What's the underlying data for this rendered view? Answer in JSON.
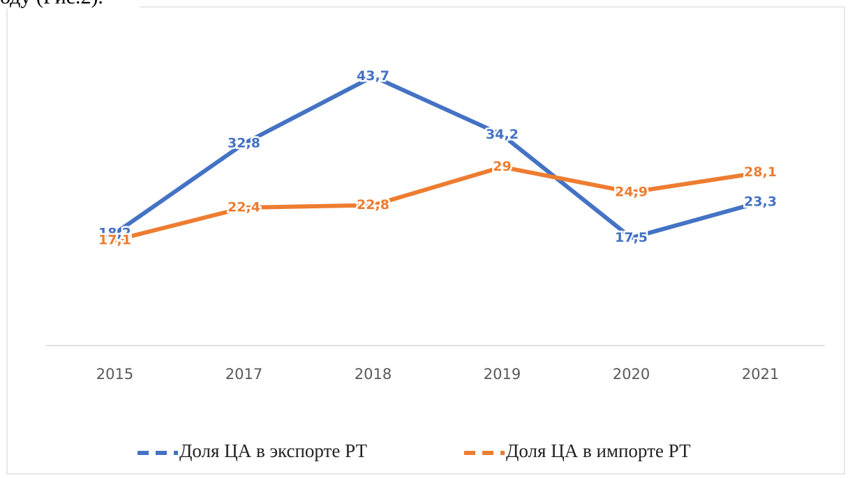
{
  "page_text": "оду (Рис.2).",
  "chart_data": {
    "type": "line",
    "categories": [
      "2015",
      "2017",
      "2018",
      "2019",
      "2020",
      "2021"
    ],
    "series": [
      {
        "name": "Доля ЦА в экспорте РТ",
        "color": "#4472c4",
        "values": [
          18.2,
          32.8,
          43.7,
          34.2,
          17.5,
          23.3
        ],
        "value_labels": [
          "18,2",
          "32,8",
          "43,7",
          "34,2",
          "17,5",
          "23,3"
        ]
      },
      {
        "name": "Доля ЦА в импорте РТ",
        "color": "#ed7d31",
        "values": [
          17.1,
          22.4,
          22.8,
          29,
          24.9,
          28.1
        ],
        "value_labels": [
          "17,1",
          "22,4",
          "22,8",
          "29",
          "24,9",
          "28,1"
        ]
      }
    ],
    "ylim": [
      0,
      50
    ],
    "legend": "bottom"
  }
}
